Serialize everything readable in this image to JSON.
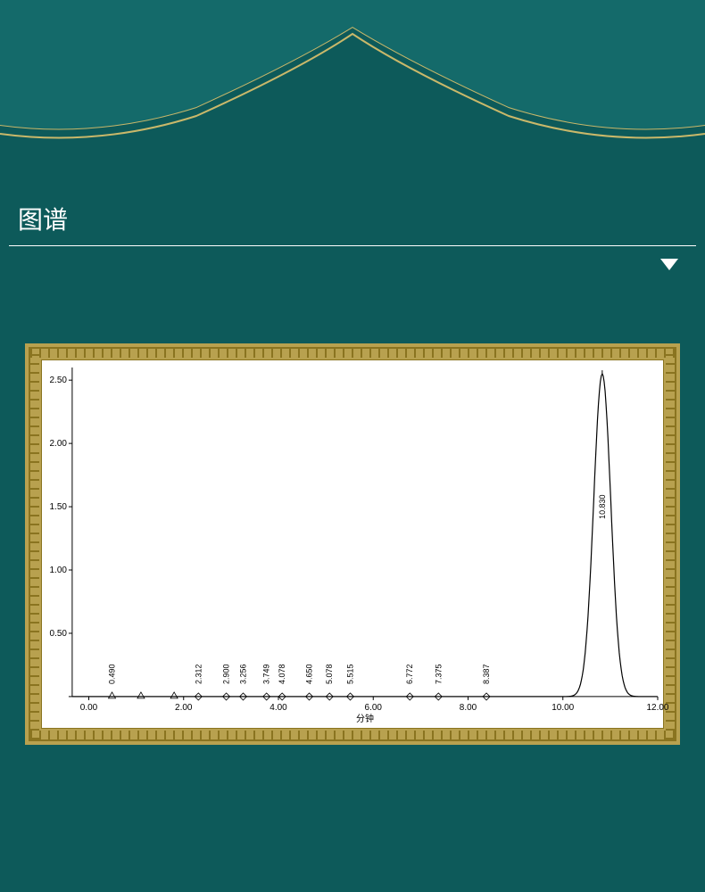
{
  "page": {
    "bg_color": "#0d5a5a",
    "accent_gold": "#b8a14f",
    "gold_dark": "#8a7420"
  },
  "section": {
    "title": "图谱"
  },
  "chromatogram": {
    "type": "line",
    "xlim": [
      0,
      12
    ],
    "ylim": [
      0,
      2.6
    ],
    "xtick_step": 2.0,
    "ytick_step": 0.5,
    "xtick_labels": [
      "0.00",
      "2.00",
      "4.00",
      "6.00",
      "8.00",
      "10.00",
      "12.00"
    ],
    "ytick_labels": [
      "",
      "0.50",
      "1.00",
      "1.50",
      "2.00",
      "2.50"
    ],
    "xlabel": "分钟",
    "line_color": "#000000",
    "line_width": 1.2,
    "bg_color": "#ffffff",
    "tick_fontsize": 10,
    "label_fontsize": 10,
    "peak_label_fontsize": 9,
    "main_peak": {
      "rt": 10.83,
      "height": 2.55,
      "sigma": 0.18,
      "label": "10.830"
    },
    "minor_peaks": [
      {
        "rt": 0.49,
        "label": "0.490",
        "marker": "triangle"
      },
      {
        "rt": 2.312,
        "label": "2.312",
        "marker": "diamond"
      },
      {
        "rt": 2.9,
        "label": "2.900",
        "marker": "diamond"
      },
      {
        "rt": 3.256,
        "label": "3.256",
        "marker": "diamond"
      },
      {
        "rt": 3.749,
        "label": "3.749",
        "marker": "diamond"
      },
      {
        "rt": 4.078,
        "label": "4.078",
        "marker": "diamond"
      },
      {
        "rt": 4.65,
        "label": "4.650",
        "marker": "diamond"
      },
      {
        "rt": 5.078,
        "label": "5.078",
        "marker": "diamond"
      },
      {
        "rt": 5.515,
        "label": "5.515",
        "marker": "diamond"
      },
      {
        "rt": 6.772,
        "label": "6.772",
        "marker": "diamond"
      },
      {
        "rt": 7.375,
        "label": "7.375",
        "marker": "diamond"
      },
      {
        "rt": 8.387,
        "label": "8.387",
        "marker": "diamond"
      }
    ],
    "extra_triangles": [
      1.1,
      1.8
    ]
  }
}
